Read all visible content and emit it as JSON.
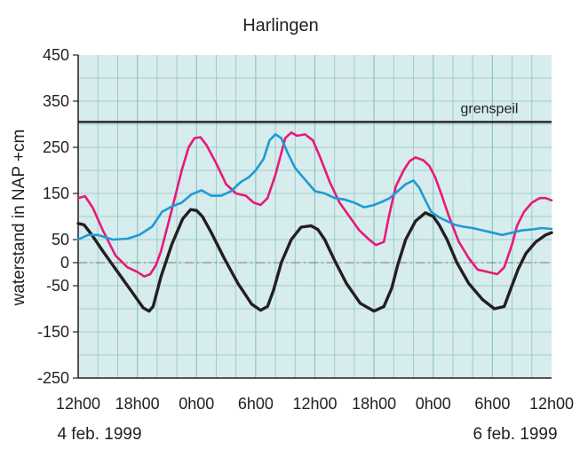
{
  "chart_data": {
    "type": "line",
    "title": "Harlingen",
    "ylabel": "waterstand in NAP  +cm",
    "xlabel": "",
    "ylim": [
      -250,
      450
    ],
    "x_range_hours": [
      0,
      48
    ],
    "y_ticks": [
      450,
      350,
      250,
      150,
      50,
      0,
      -50,
      -150,
      -250
    ],
    "x_tick_labels": [
      "12h00",
      "18h00",
      "0h00",
      "6h00",
      "12h00",
      "18h00",
      "0h00",
      "6h00",
      "12h00"
    ],
    "x_tick_hours": [
      0,
      6,
      12,
      18,
      24,
      30,
      36,
      42,
      48
    ],
    "date_labels": {
      "start": "4 feb. 1999",
      "end": "6 feb. 1999"
    },
    "grid": true,
    "reference_line": {
      "label": "grenspeil",
      "value": 305
    },
    "zero_line": {
      "value": 0,
      "style": "dash-dot"
    },
    "colors": {
      "plot_background": "#d7ecec",
      "grid": "#8fc4c4",
      "axis": "#231f20",
      "black_series": "#231f20",
      "pink_series": "#e8187a",
      "blue_series": "#1e9ad6",
      "reference": "#231f20"
    },
    "series": [
      {
        "color": "#231f20",
        "x": [
          0,
          0.6,
          1.4,
          2.5,
          4,
          5.5,
          6.6,
          7.2,
          7.6,
          8.4,
          9.5,
          10.6,
          11.4,
          12,
          12.6,
          13.5,
          14.8,
          16.2,
          17.6,
          18.5,
          19.2,
          19.8,
          20.6,
          21.6,
          22.6,
          23.6,
          24.3,
          25,
          26,
          27.2,
          28.6,
          30,
          31,
          31.8,
          32.4,
          33.2,
          34.2,
          35.2,
          36,
          36.6,
          37.4,
          38.4,
          39.6,
          41,
          42.2,
          43.2,
          43.8,
          44.6,
          45.4,
          46.4,
          47.4,
          48
        ],
        "values": [
          85,
          82,
          60,
          25,
          -20,
          -65,
          -98,
          -105,
          -95,
          -30,
          40,
          95,
          115,
          113,
          100,
          65,
          10,
          -45,
          -90,
          -103,
          -95,
          -60,
          0,
          50,
          77,
          80,
          72,
          50,
          5,
          -45,
          -88,
          -105,
          -95,
          -55,
          -5,
          50,
          90,
          108,
          100,
          82,
          50,
          0,
          -45,
          -80,
          -100,
          -95,
          -60,
          -15,
          20,
          45,
          60,
          65
        ]
      },
      {
        "color": "#e8187a",
        "x": [
          0,
          0.7,
          1.5,
          2.5,
          3.8,
          5,
          6,
          6.7,
          7.3,
          7.9,
          8.4,
          9.5,
          10.5,
          11.2,
          11.8,
          12.4,
          13,
          14,
          15,
          16,
          17,
          17.8,
          18.5,
          19.2,
          20,
          20.5,
          21,
          21.6,
          22.2,
          23,
          23.8,
          24.5,
          25.5,
          26.5,
          27.5,
          28.5,
          29.5,
          30.2,
          31,
          31.5,
          32.2,
          33,
          33.6,
          34.2,
          35,
          35.6,
          36.2,
          36.8,
          37.6,
          38.6,
          39.6,
          40.5,
          41.5,
          42.5,
          43.2,
          44,
          44.5,
          45.2,
          46,
          46.8,
          47.4,
          48
        ],
        "values": [
          140,
          144,
          118,
          70,
          15,
          -10,
          -20,
          -30,
          -25,
          -5,
          25,
          115,
          200,
          250,
          270,
          272,
          255,
          215,
          170,
          150,
          145,
          130,
          125,
          140,
          190,
          230,
          270,
          282,
          275,
          278,
          265,
          230,
          175,
          130,
          100,
          70,
          50,
          38,
          45,
          100,
          165,
          200,
          220,
          228,
          222,
          210,
          185,
          150,
          100,
          45,
          10,
          -15,
          -20,
          -25,
          -10,
          40,
          80,
          110,
          130,
          140,
          140,
          135
        ]
      },
      {
        "color": "#1e9ad6",
        "x": [
          0,
          1,
          2,
          3.5,
          5,
          6.2,
          7.5,
          8.5,
          9.5,
          10.5,
          11.5,
          12.5,
          13.5,
          14.5,
          15.5,
          16.5,
          17.3,
          18,
          18.8,
          19.4,
          20,
          20.6,
          21.2,
          22,
          23,
          24,
          25,
          26,
          27,
          28,
          29,
          30,
          30.8,
          31.6,
          32.4,
          33.2,
          34,
          34.6,
          35.2,
          35.8,
          36.6,
          37.4,
          38.2,
          39,
          40,
          41,
          42,
          43,
          44,
          45,
          46,
          47,
          48
        ],
        "values": [
          50,
          60,
          60,
          50,
          52,
          60,
          78,
          110,
          122,
          130,
          148,
          157,
          145,
          145,
          155,
          175,
          185,
          200,
          225,
          265,
          278,
          270,
          240,
          205,
          180,
          155,
          150,
          140,
          137,
          130,
          120,
          125,
          132,
          140,
          155,
          170,
          178,
          162,
          135,
          110,
          98,
          90,
          82,
          78,
          75,
          70,
          65,
          60,
          65,
          70,
          72,
          75,
          73
        ]
      }
    ]
  }
}
